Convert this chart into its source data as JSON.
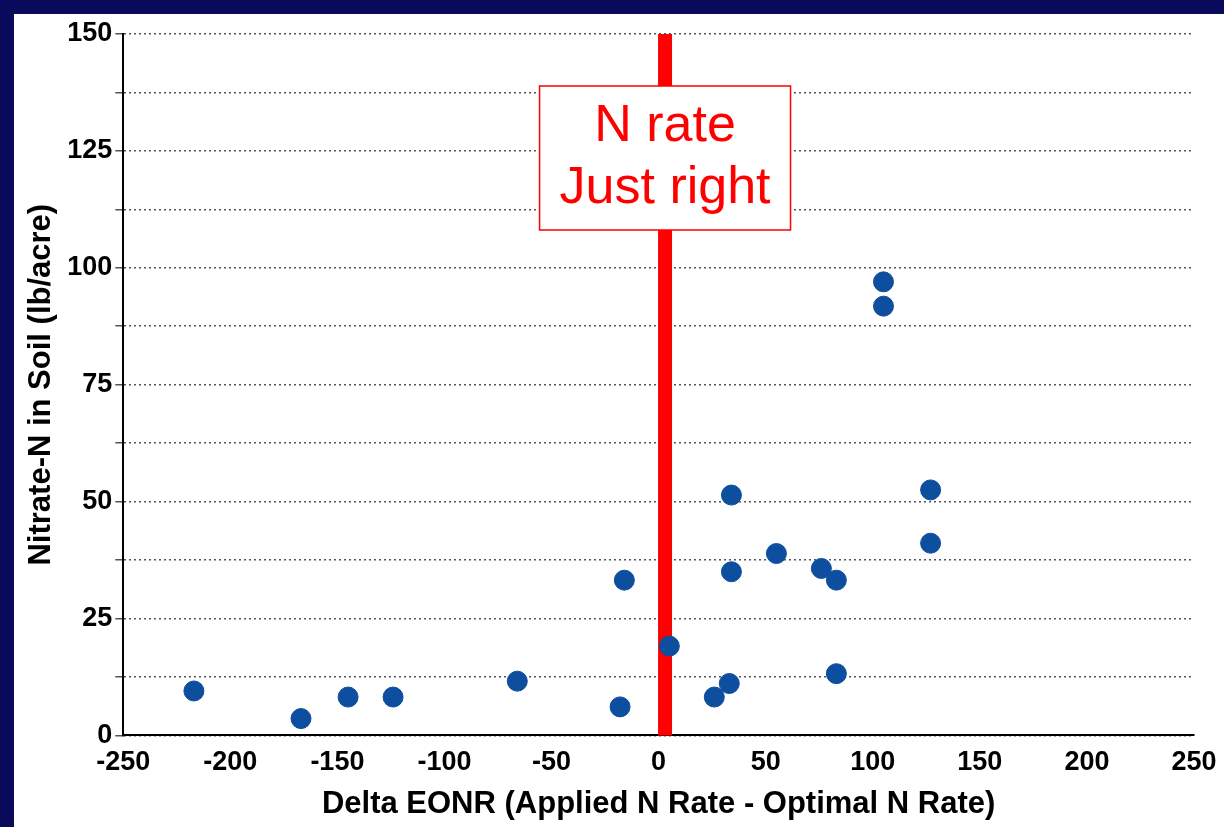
{
  "chart_data": {
    "type": "scatter",
    "xlabel": "Delta EONR (Applied N Rate - Optimal N Rate)",
    "ylabel": "Nitrate-N in Soil (lb/acre)",
    "x": [
      -217,
      -167,
      -145,
      -124,
      -66,
      -18,
      -16,
      5,
      26,
      33,
      34,
      34,
      55,
      76,
      83,
      83,
      105,
      105,
      127,
      127
    ],
    "series": [
      {
        "color": "#0d4f9e",
        "values": [
          9.5,
          3.6,
          8.2,
          8.2,
          11.6,
          6.1,
          33.2,
          19.1,
          8.2,
          11.1,
          51.4,
          35,
          38.9,
          35.7,
          33.2,
          13.2,
          97,
          91.8,
          52.5,
          41.1
        ]
      }
    ],
    "marker": "circle",
    "xlim": [
      -250,
      250
    ],
    "xticks": [
      -250,
      -200,
      -150,
      -100,
      -50,
      0,
      50,
      100,
      150,
      200,
      250
    ],
    "ylim": [
      0,
      150
    ],
    "yticks": [
      0,
      {
        "value": 12.5,
        "label": null
      },
      25,
      {
        "value": 37.5,
        "label": null
      },
      50,
      {
        "value": 62.5,
        "label": null
      },
      75,
      {
        "value": 87.5,
        "label": null
      },
      100,
      {
        "value": 112.5,
        "label": null
      },
      125,
      {
        "value": 137.5,
        "label": null
      },
      150
    ],
    "grid": "y",
    "legend": false,
    "ref_lines": [
      {
        "axis": "x",
        "value": 3,
        "label": "N rate\nJust right",
        "color": "#ff0000"
      }
    ]
  }
}
